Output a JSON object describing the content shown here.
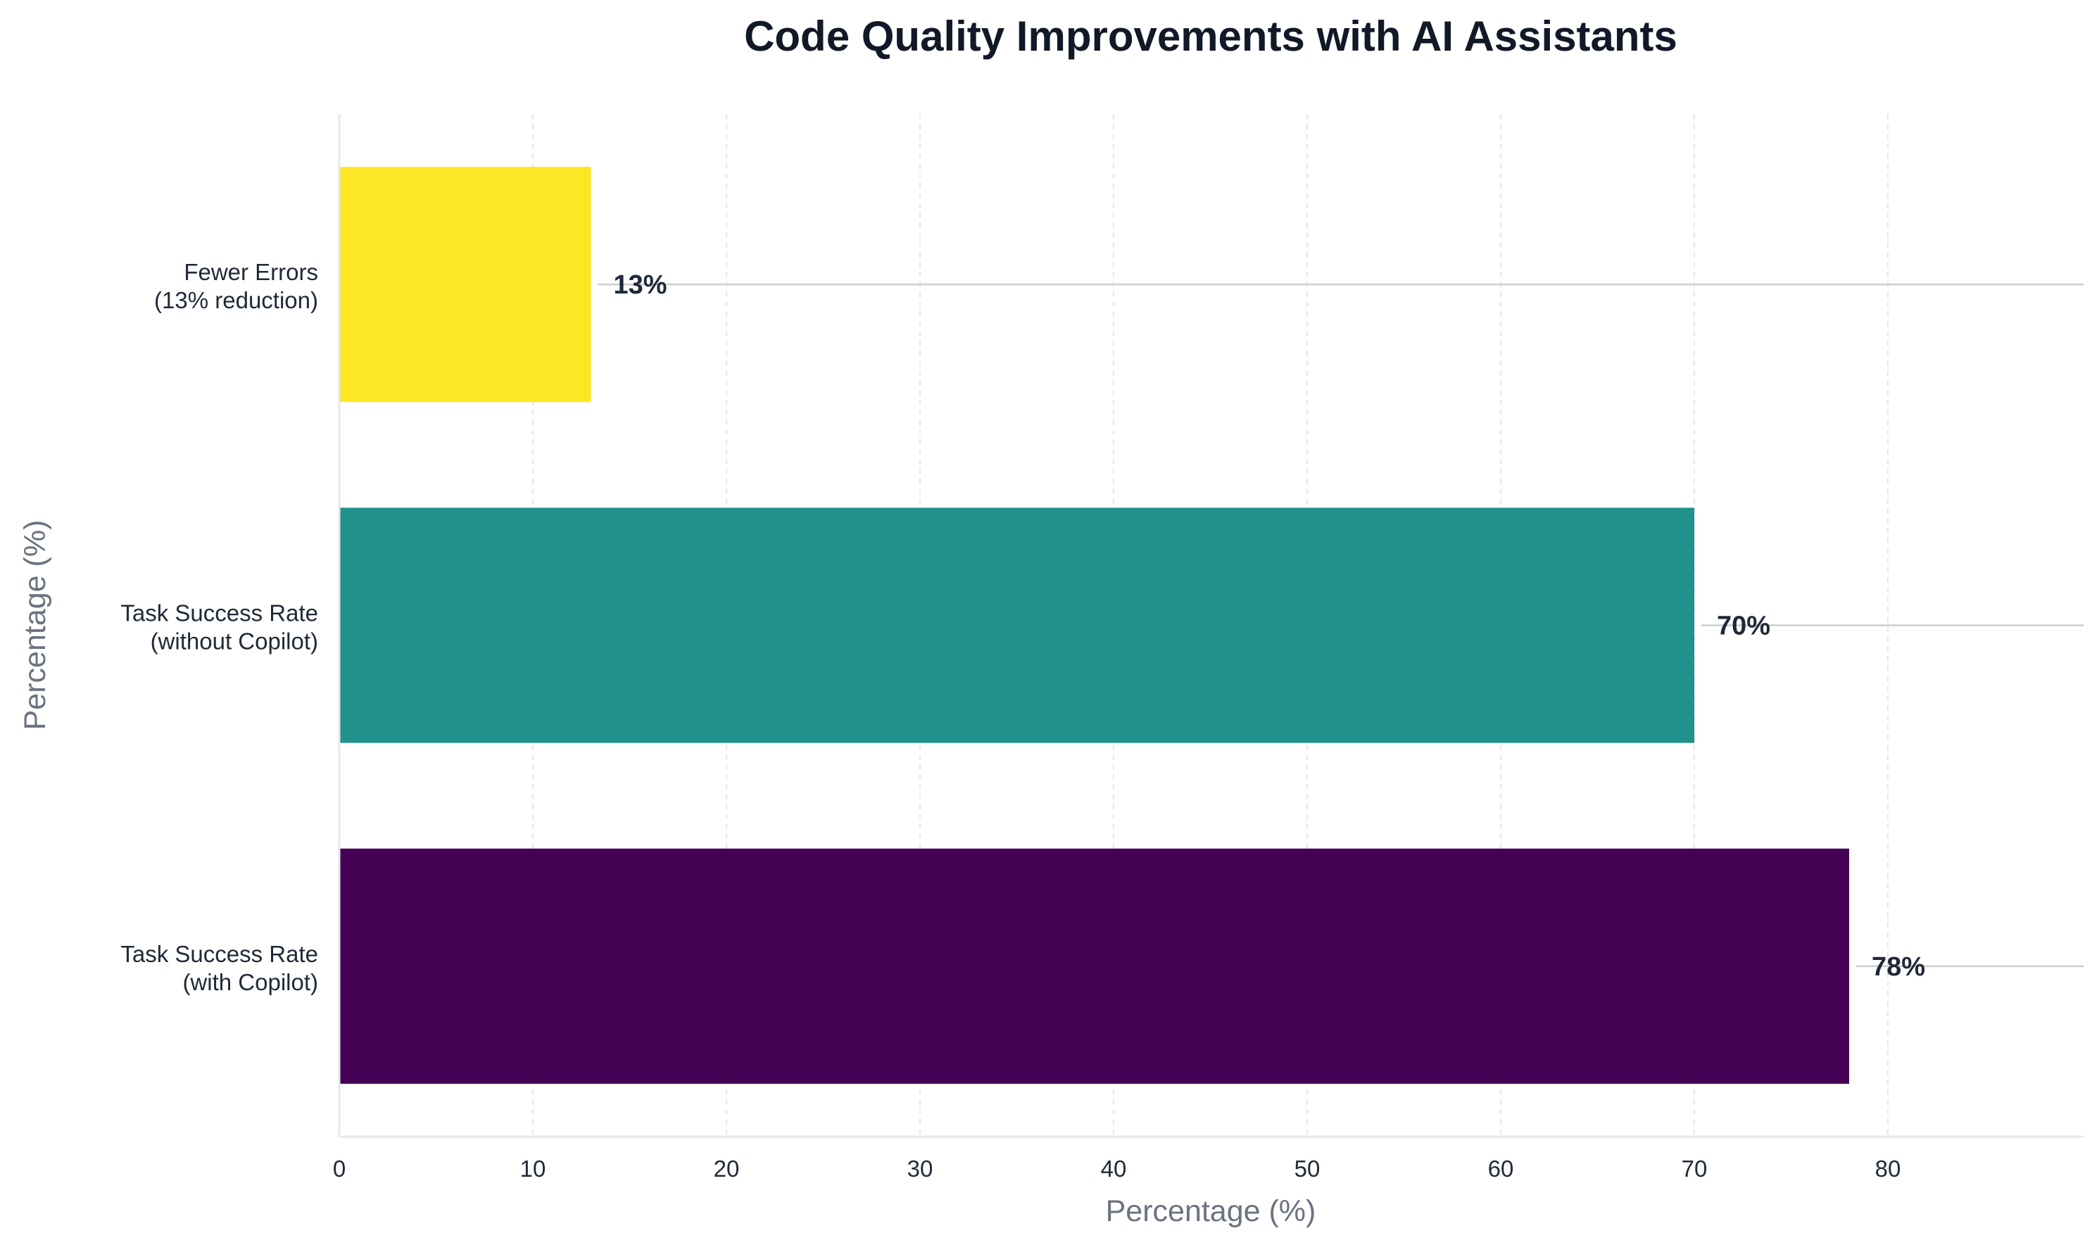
{
  "chart_data": {
    "type": "bar",
    "orientation": "horizontal",
    "title": "Code Quality Improvements with AI Assistants",
    "xlabel": "Percentage (%)",
    "ylabel": "Percentage (%)",
    "xlim": [
      0,
      90
    ],
    "xticks": [
      "0",
      "10",
      "20",
      "30",
      "40",
      "50",
      "60",
      "70",
      "80"
    ],
    "grid": "vertical dashed",
    "categories": [
      [
        "Task Success Rate",
        "(with Copilot)"
      ],
      [
        "Task Success Rate",
        "(without Copilot)"
      ],
      [
        "Fewer Errors",
        "(13% reduction)"
      ]
    ],
    "values": [
      78,
      70,
      13
    ],
    "data_labels": [
      "78%",
      "70%",
      "13%"
    ],
    "colors": [
      "#440154",
      "#21918c",
      "#fde725"
    ]
  }
}
